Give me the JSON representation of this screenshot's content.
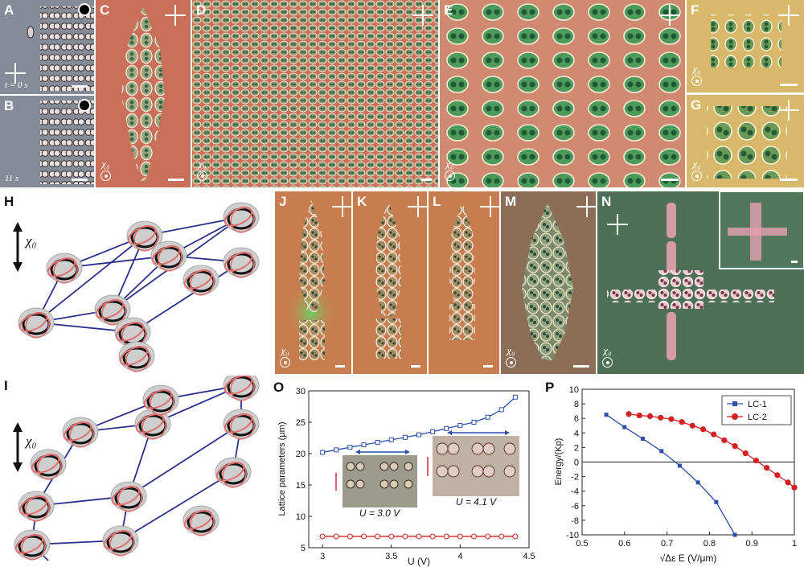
{
  "panels": {
    "A": {
      "label": "A",
      "time": "t = 0 s",
      "chi": "χ₀"
    },
    "B": {
      "label": "B",
      "time": "11 s",
      "chi": "χ₀"
    },
    "C": {
      "label": "C",
      "chi": "χ₀"
    },
    "D": {
      "label": "D",
      "chi": "χ₀"
    },
    "E": {
      "label": "E",
      "chi": "χ₀"
    },
    "F": {
      "label": "F",
      "chi": "χ₀"
    },
    "G": {
      "label": "G",
      "chi": "χ₀"
    },
    "H": {
      "label": "H",
      "chi": "χ₀"
    },
    "I": {
      "label": "I",
      "chi": "χ₀"
    },
    "J": {
      "label": "J",
      "chi": "χ₀"
    },
    "K": {
      "label": "K"
    },
    "L": {
      "label": "L"
    },
    "M": {
      "label": "M",
      "chi": "χ₀"
    },
    "N": {
      "label": "N",
      "chi": "χ₀"
    },
    "O": {
      "label": "O"
    },
    "P": {
      "label": "P"
    }
  },
  "colors": {
    "blue_series": "#2b4fa8",
    "red_series": "#d42020",
    "bg_gray": "#7f8a95",
    "bg_orange": "#c9725a",
    "bg_yellow": "#d8b86a",
    "bg_green": "#4d7056"
  },
  "chart_data": [
    {
      "type": "line",
      "panel": "O",
      "xlabel": "U (V)",
      "ylabel": "Lattice parameters (μm)",
      "xlim": [
        2.9,
        4.5
      ],
      "ylim": [
        5,
        30
      ],
      "xticks": [
        "3",
        "3.5",
        "4",
        "4.5"
      ],
      "yticks": [
        "5",
        "10",
        "15",
        "20",
        "25",
        "30"
      ],
      "series": [
        {
          "x": [
            3.0,
            3.1,
            3.2,
            3.3,
            3.4,
            3.5,
            3.6,
            3.7,
            3.8,
            3.9,
            4.0,
            4.1,
            4.2,
            4.3,
            4.4
          ],
          "values": [
            20.2,
            20.6,
            21.0,
            21.4,
            21.8,
            22.2,
            22.6,
            23.0,
            23.5,
            24.0,
            24.5,
            25.0,
            25.8,
            27.0,
            29.0
          ]
        },
        {
          "x": [
            3.0,
            3.1,
            3.2,
            3.3,
            3.4,
            3.5,
            3.6,
            3.7,
            3.8,
            3.9,
            4.0,
            4.1,
            4.2,
            4.3,
            4.4
          ],
          "values": [
            6.8,
            6.8,
            6.8,
            6.8,
            6.8,
            6.8,
            6.8,
            6.8,
            6.8,
            6.8,
            6.8,
            6.8,
            6.8,
            6.8,
            6.8
          ]
        }
      ],
      "insets": [
        {
          "text": "U = 3.0 V"
        },
        {
          "text": "U = 4.1 V"
        }
      ]
    },
    {
      "type": "line",
      "panel": "P",
      "xlabel": "√Δε E (V/μm)",
      "ylabel": "Energy/(Kp)",
      "xlim": [
        0.5,
        1.0
      ],
      "ylim": [
        -10,
        10
      ],
      "xticks": [
        "0.5",
        "0.6",
        "0.7",
        "0.8",
        "0.9",
        "1"
      ],
      "yticks": [
        "10",
        "8",
        "6",
        "4",
        "2",
        "0",
        "-2",
        "-4",
        "-6",
        "-8",
        "-10"
      ],
      "legend_position": "top-right",
      "series": [
        {
          "name": "LC-1",
          "x": [
            0.557,
            0.6,
            0.643,
            0.687,
            0.73,
            0.773,
            0.816,
            0.86
          ],
          "values": [
            6.5,
            4.8,
            3.2,
            1.5,
            -0.5,
            -2.8,
            -5.5,
            -10.0
          ]
        },
        {
          "name": "LC-2",
          "x": [
            0.61,
            0.635,
            0.66,
            0.685,
            0.71,
            0.735,
            0.76,
            0.785,
            0.81,
            0.835,
            0.86,
            0.885,
            0.91,
            0.935,
            0.96,
            0.985,
            1.0
          ],
          "values": [
            6.6,
            6.4,
            6.3,
            6.1,
            5.9,
            5.5,
            5.0,
            4.5,
            3.8,
            3.0,
            2.2,
            1.2,
            0.2,
            -0.8,
            -1.8,
            -2.8,
            -3.5
          ]
        }
      ]
    }
  ]
}
